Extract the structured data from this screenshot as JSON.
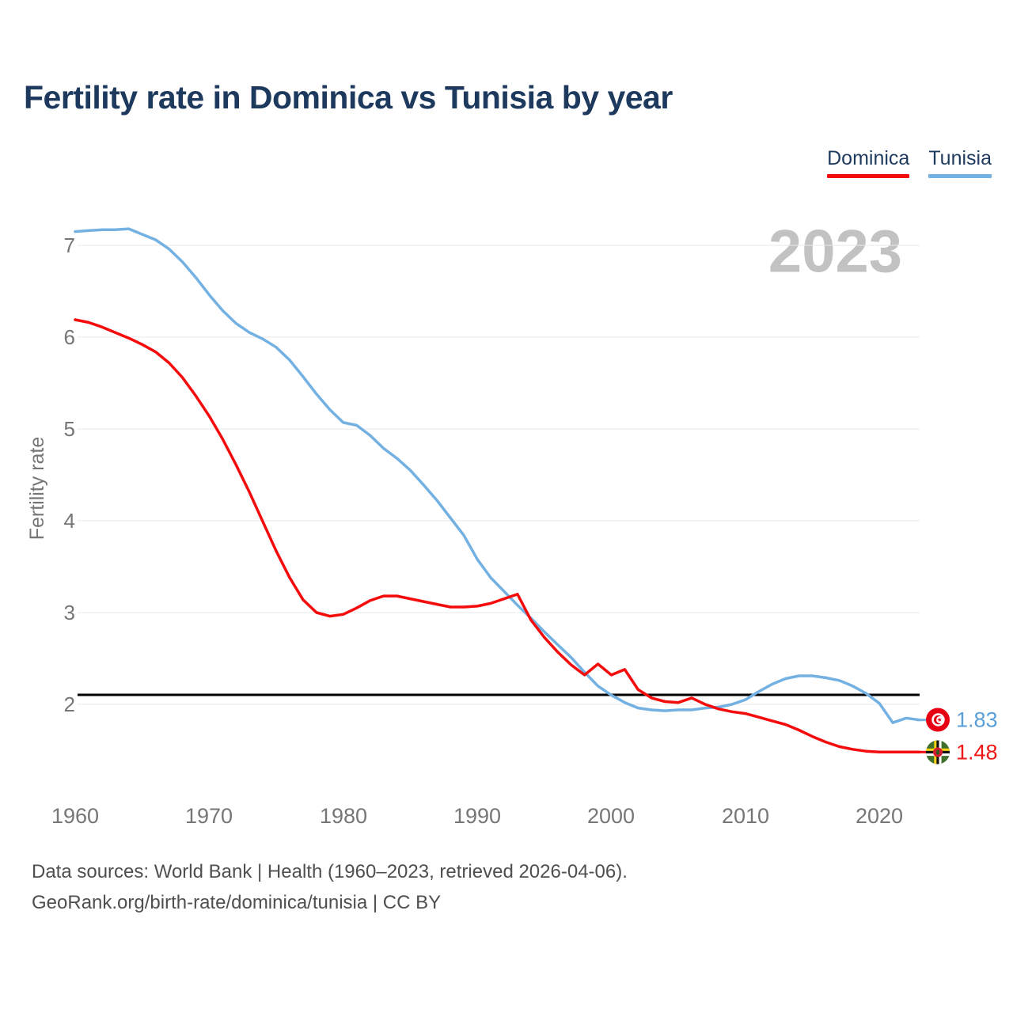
{
  "title": "Fertility rate in Dominica vs Tunisia by year",
  "watermark": "2023",
  "legend": [
    {
      "label": "Dominica",
      "color": "#f40b0b"
    },
    {
      "label": "Tunisia",
      "color": "#74b1e3"
    }
  ],
  "footer": {
    "line1": "Data sources: World Bank | Health (1960–2023, retrieved 2026-04-06).",
    "line2": "GeoRank.org/birth-rate/dominica/tunisia | CC BY"
  },
  "chart_data": {
    "type": "line",
    "title": "Fertility rate in Dominica vs Tunisia by year",
    "xlabel": "",
    "ylabel": "Fertility rate",
    "grid": "horizontal",
    "legend_position": "top-right",
    "ylim": [
      1.2,
      7.4
    ],
    "xlim": [
      1960,
      2023
    ],
    "y_ticks": [
      7,
      6,
      5,
      4,
      3,
      2
    ],
    "x_ticks": [
      1960,
      1970,
      1980,
      1990,
      2000,
      2010,
      2020
    ],
    "reference_line_y": 2.1,
    "year_watermark": "2023",
    "x": [
      1960,
      1961,
      1962,
      1963,
      1964,
      1965,
      1966,
      1967,
      1968,
      1969,
      1970,
      1971,
      1972,
      1973,
      1974,
      1975,
      1976,
      1977,
      1978,
      1979,
      1980,
      1981,
      1982,
      1983,
      1984,
      1985,
      1986,
      1987,
      1988,
      1989,
      1990,
      1991,
      1992,
      1993,
      1994,
      1995,
      1996,
      1997,
      1998,
      1999,
      2000,
      2001,
      2002,
      2003,
      2004,
      2005,
      2006,
      2007,
      2008,
      2009,
      2010,
      2011,
      2012,
      2013,
      2014,
      2015,
      2016,
      2017,
      2018,
      2019,
      2020,
      2021,
      2022,
      2023
    ],
    "series": [
      {
        "name": "Dominica",
        "color": "#f40b0b",
        "end_label": "1.48",
        "flag": "dominica",
        "values": [
          6.19,
          6.16,
          6.11,
          6.05,
          5.99,
          5.92,
          5.84,
          5.72,
          5.56,
          5.36,
          5.14,
          4.89,
          4.61,
          4.31,
          3.99,
          3.67,
          3.38,
          3.14,
          3.0,
          2.96,
          2.98,
          3.05,
          3.13,
          3.18,
          3.18,
          3.15,
          3.12,
          3.09,
          3.06,
          3.06,
          3.07,
          3.1,
          3.15,
          3.2,
          2.92,
          2.73,
          2.57,
          2.43,
          2.32,
          2.44,
          2.32,
          2.38,
          2.16,
          2.07,
          2.03,
          2.02,
          2.07,
          2.0,
          1.95,
          1.92,
          1.9,
          1.86,
          1.82,
          1.78,
          1.72,
          1.65,
          1.59,
          1.54,
          1.51,
          1.49,
          1.48,
          1.48,
          1.48,
          1.48
        ]
      },
      {
        "name": "Tunisia",
        "color": "#74b1e3",
        "end_label": "1.83",
        "flag": "tunisia",
        "values": [
          7.15,
          7.16,
          7.17,
          7.17,
          7.18,
          7.12,
          7.06,
          6.96,
          6.82,
          6.65,
          6.46,
          6.29,
          6.15,
          6.05,
          5.98,
          5.89,
          5.75,
          5.57,
          5.38,
          5.21,
          5.07,
          5.04,
          4.93,
          4.79,
          4.68,
          4.55,
          4.39,
          4.22,
          4.03,
          3.84,
          3.58,
          3.38,
          3.23,
          3.08,
          2.94,
          2.79,
          2.65,
          2.51,
          2.35,
          2.2,
          2.1,
          2.02,
          1.96,
          1.94,
          1.93,
          1.94,
          1.94,
          1.96,
          1.97,
          2.0,
          2.05,
          2.14,
          2.22,
          2.28,
          2.31,
          2.31,
          2.29,
          2.26,
          2.2,
          2.12,
          2.01,
          1.8,
          1.85,
          1.83
        ]
      }
    ]
  }
}
